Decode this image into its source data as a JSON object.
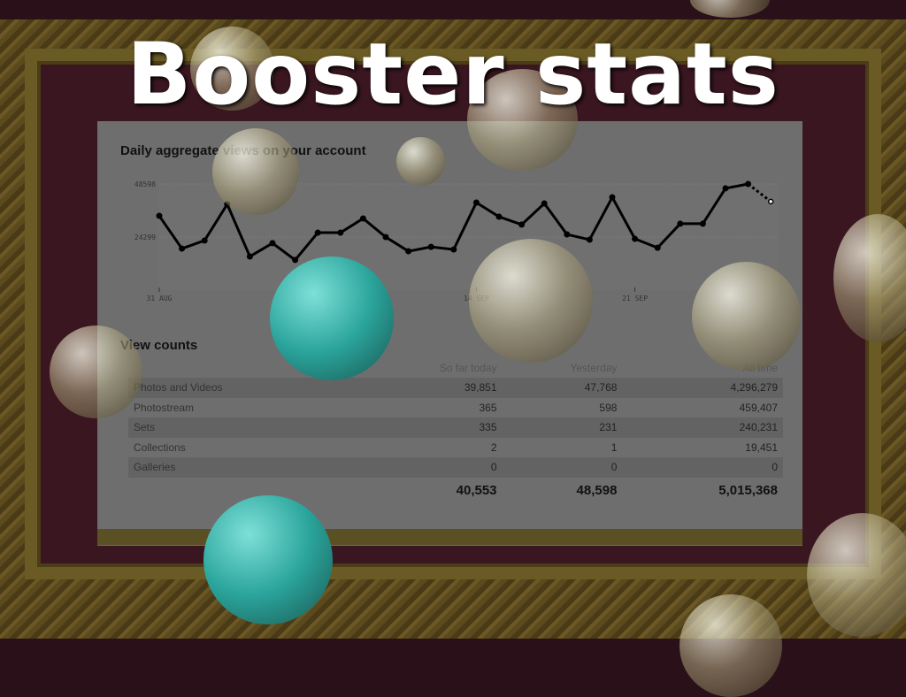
{
  "slide": {
    "title": "Booster stats"
  },
  "chart": {
    "title": "Daily aggregate views on your account"
  },
  "chart_data": {
    "type": "line",
    "title": "Daily aggregate views on your account",
    "y_ticks": [
      "48598",
      "24299"
    ],
    "x_ticks": [
      {
        "label": "31 AUG",
        "index": 0
      },
      {
        "label": "14 SEP",
        "index": 14
      },
      {
        "label": "21 SEP",
        "index": 21
      }
    ],
    "ylim": [
      0,
      48598
    ],
    "values": [
      34000,
      19000,
      22700,
      39300,
      15400,
      21500,
      13800,
      26300,
      26300,
      32800,
      24300,
      17800,
      19800,
      18600,
      40100,
      33600,
      30000,
      39700,
      25500,
      23100,
      42500,
      23500,
      19400,
      30400,
      30400,
      46600,
      48598,
      40553
    ],
    "last_point_partial": true,
    "grid": true,
    "color": "#000000"
  },
  "view_counts": {
    "title": "View counts",
    "columns": [
      "",
      "So far today",
      "Yesterday",
      "All time"
    ],
    "rows": [
      [
        "Photos and Videos",
        "39,851",
        "47,768",
        "4,296,279"
      ],
      [
        "Photostream",
        "365",
        "598",
        "459,407"
      ],
      [
        "Sets",
        "335",
        "231",
        "240,231"
      ],
      [
        "Collections",
        "2",
        "1",
        "19,451"
      ],
      [
        "Galleries",
        "0",
        "0",
        "0"
      ]
    ],
    "totals": [
      "",
      "40,553",
      "48,598",
      "5,015,368"
    ]
  }
}
